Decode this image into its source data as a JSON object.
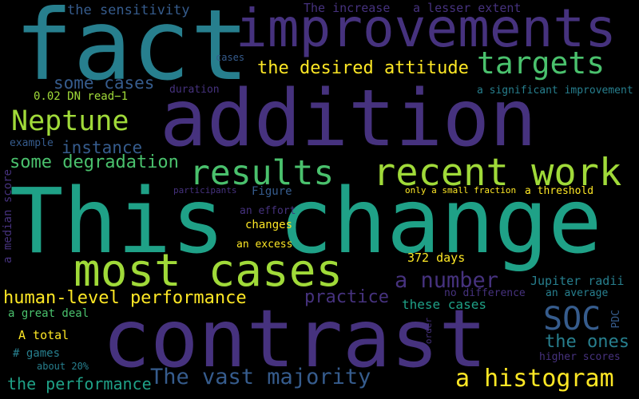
{
  "background": "#000000",
  "palette": {
    "dark_purple": "#46327e",
    "blue": "#365c8d",
    "steel": "#277f8e",
    "teal": "#1fa187",
    "green": "#4ac16d",
    "lime": "#a0da39",
    "yellow": "#fde725"
  },
  "words": [
    "This change",
    "contrast",
    "addition",
    "fact",
    "improvements",
    "most cases",
    "results",
    "recent work",
    "targets",
    "Neptune",
    "a histogram",
    "SOC",
    "The vast majority",
    "a number",
    "the desired attitude",
    "human-level performance",
    "some degradation",
    "instance",
    "some cases",
    "practice",
    "the ones",
    "the performance",
    "the sensitivity",
    "The increase",
    "a lesser extent",
    "0.02 DN read−1",
    "cases",
    "duration",
    "a significant improvement",
    "example",
    "a median score",
    "participants",
    "Figure",
    "only a small fraction",
    "a threshold",
    "an effort",
    "changes",
    "an excess",
    "372 days",
    "Jupiter radii",
    "no difference",
    "an average",
    "these cases",
    "a great deal",
    "PDC",
    "A total",
    "order",
    "# games",
    "higher scores",
    "about 20%"
  ]
}
